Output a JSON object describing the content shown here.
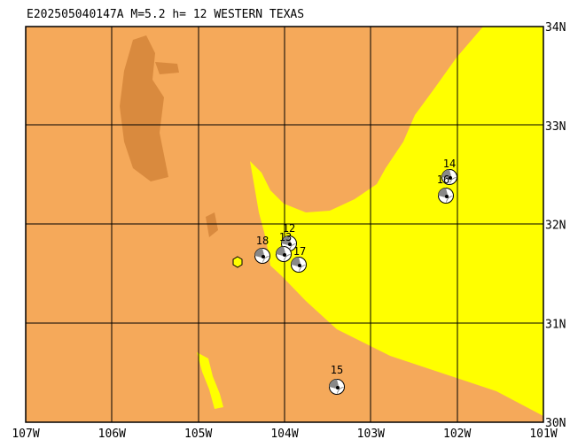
{
  "header": {
    "title": "E202505040147A M=5.2 h= 12 WESTERN TEXAS"
  },
  "map": {
    "lon_labels": [
      "107W",
      "106W",
      "105W",
      "104W",
      "103W",
      "102W",
      "101W"
    ],
    "lat_labels": [
      "34N",
      "33N",
      "32N",
      "31N",
      "30N"
    ],
    "events": [
      {
        "label": "18"
      },
      {
        "label": "12"
      },
      {
        "label": "13"
      },
      {
        "label": "17"
      },
      {
        "label": "14"
      },
      {
        "label": "16"
      },
      {
        "label": "15"
      }
    ]
  }
}
